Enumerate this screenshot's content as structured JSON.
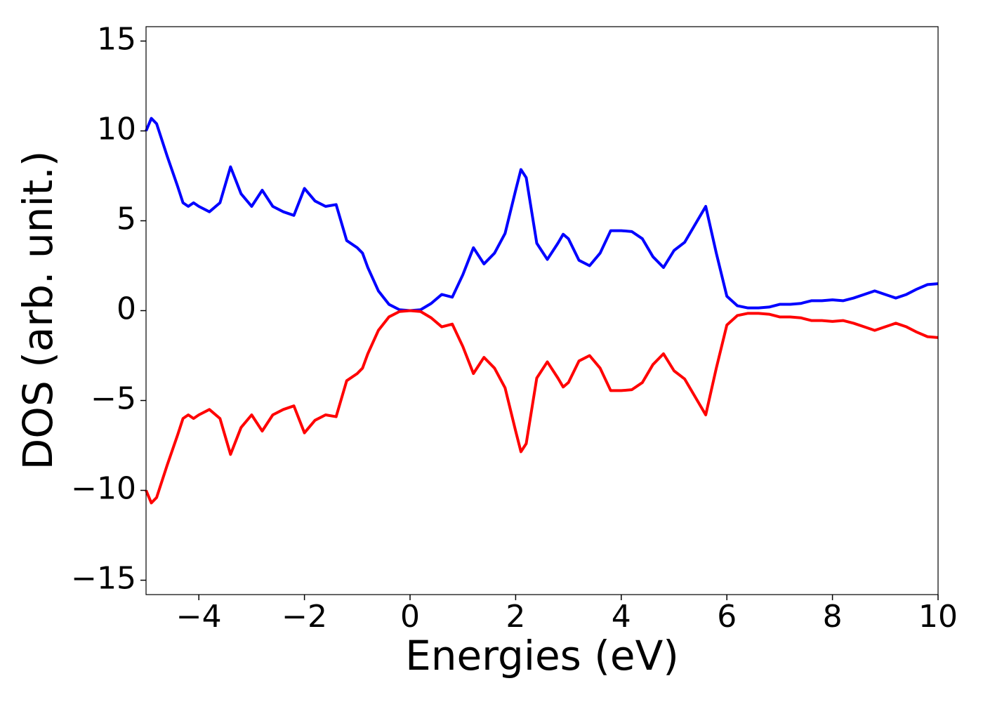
{
  "chart_data": {
    "type": "line",
    "xlabel": "Energies (eV)",
    "ylabel": "DOS (arb. unit.)",
    "x": [
      -5.0,
      -4.9,
      -4.8,
      -4.6,
      -4.4,
      -4.3,
      -4.2,
      -4.1,
      -4.0,
      -3.8,
      -3.6,
      -3.4,
      -3.2,
      -3.0,
      -2.8,
      -2.6,
      -2.4,
      -2.2,
      -2.0,
      -1.8,
      -1.6,
      -1.4,
      -1.2,
      -1.0,
      -0.9,
      -0.8,
      -0.6,
      -0.4,
      -0.2,
      0.0,
      0.2,
      0.4,
      0.6,
      0.8,
      1.0,
      1.2,
      1.4,
      1.6,
      1.8,
      2.0,
      2.1,
      2.2,
      2.4,
      2.6,
      2.8,
      2.9,
      3.0,
      3.2,
      3.4,
      3.6,
      3.8,
      4.0,
      4.2,
      4.4,
      4.6,
      4.8,
      5.0,
      5.2,
      5.4,
      5.6,
      5.8,
      6.0,
      6.2,
      6.4,
      6.6,
      6.8,
      7.0,
      7.2,
      7.4,
      7.6,
      7.8,
      8.0,
      8.2,
      8.4,
      8.6,
      8.8,
      9.0,
      9.2,
      9.4,
      9.6,
      9.8,
      10.0
    ],
    "series": [
      {
        "color": "#0000ff",
        "values": [
          10.0,
          10.7,
          10.4,
          8.6,
          6.9,
          6.0,
          5.8,
          6.0,
          5.8,
          5.5,
          6.0,
          8.0,
          6.5,
          5.8,
          6.7,
          5.8,
          5.5,
          5.3,
          6.8,
          6.1,
          5.8,
          5.9,
          3.9,
          3.5,
          3.2,
          2.4,
          1.1,
          0.35,
          0.05,
          0.0,
          0.05,
          0.4,
          0.9,
          0.75,
          2.0,
          3.5,
          2.6,
          3.2,
          4.3,
          6.7,
          7.85,
          7.4,
          3.75,
          2.85,
          3.75,
          4.25,
          4.0,
          2.8,
          2.5,
          3.2,
          4.45,
          4.45,
          4.4,
          4.0,
          3.0,
          2.4,
          3.35,
          3.8,
          4.8,
          5.8,
          3.2,
          0.8,
          0.27,
          0.15,
          0.15,
          0.2,
          0.35,
          0.35,
          0.4,
          0.55,
          0.55,
          0.6,
          0.55,
          0.7,
          0.9,
          1.1,
          0.9,
          0.7,
          0.9,
          1.2,
          1.45,
          1.5
        ]
      },
      {
        "color": "#ff0000",
        "values": [
          -10.0,
          -10.7,
          -10.4,
          -8.6,
          -6.9,
          -6.0,
          -5.8,
          -6.0,
          -5.8,
          -5.5,
          -6.0,
          -8.0,
          -6.5,
          -5.8,
          -6.7,
          -5.8,
          -5.5,
          -5.3,
          -6.8,
          -6.1,
          -5.8,
          -5.9,
          -3.9,
          -3.5,
          -3.2,
          -2.4,
          -1.1,
          -0.35,
          -0.05,
          0.0,
          -0.05,
          -0.4,
          -0.9,
          -0.75,
          -2.0,
          -3.5,
          -2.6,
          -3.2,
          -4.3,
          -6.7,
          -7.85,
          -7.4,
          -3.75,
          -2.85,
          -3.75,
          -4.25,
          -4.0,
          -2.8,
          -2.5,
          -3.2,
          -4.45,
          -4.45,
          -4.4,
          -4.0,
          -3.0,
          -2.4,
          -3.35,
          -3.8,
          -4.8,
          -5.8,
          -3.2,
          -0.8,
          -0.27,
          -0.15,
          -0.15,
          -0.2,
          -0.35,
          -0.35,
          -0.4,
          -0.55,
          -0.55,
          -0.6,
          -0.55,
          -0.7,
          -0.9,
          -1.1,
          -0.9,
          -0.7,
          -0.9,
          -1.2,
          -1.45,
          -1.5
        ]
      }
    ],
    "xlim": [
      -5,
      10
    ],
    "xticks": [
      {
        "value": -4,
        "label": "−4"
      },
      {
        "value": -2,
        "label": "−2"
      },
      0,
      2,
      4,
      6,
      8,
      10
    ],
    "ylim": [
      -15.8,
      15.8
    ],
    "yticks": [
      {
        "value": -15,
        "label": "−15"
      },
      {
        "value": -10,
        "label": "−10"
      },
      {
        "value": -5,
        "label": "−5"
      },
      0,
      5,
      10,
      15
    ],
    "grid": false
  }
}
